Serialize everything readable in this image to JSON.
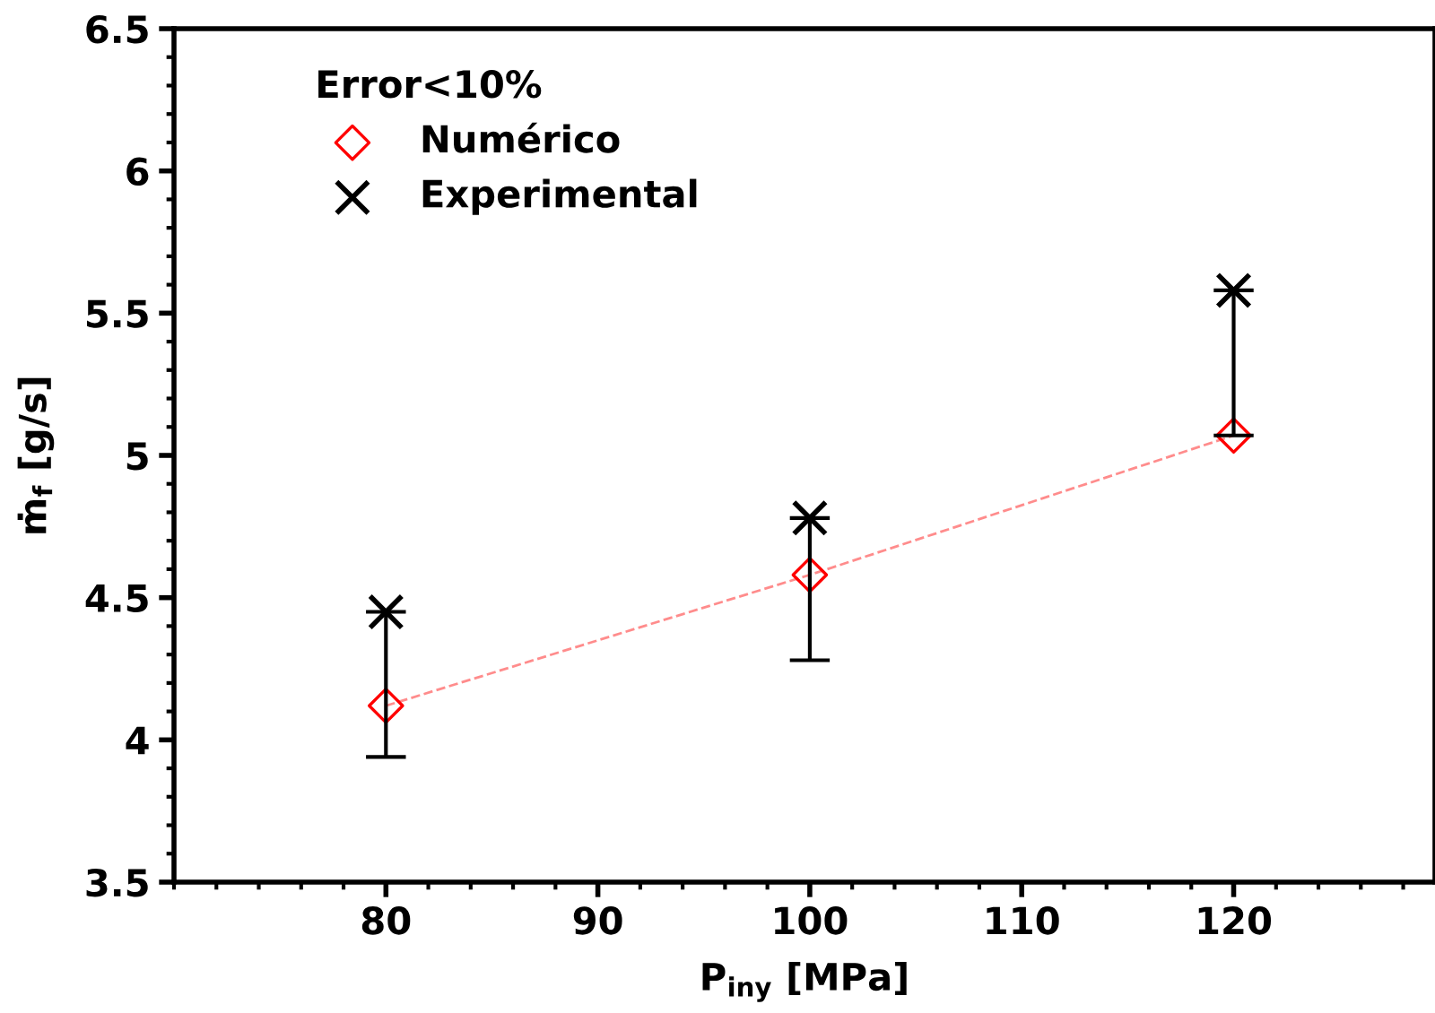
{
  "chart_data": {
    "type": "scatter",
    "xlabel": "P$_{iny}$ [MPa]",
    "ylabel": "ṁ$_{f}$ [g/s]",
    "legend_title": "Error<10%",
    "x": [
      80,
      100,
      120
    ],
    "series": [
      {
        "name": "Numérico",
        "color": "#ff0000",
        "type": "line",
        "marker": "diamond",
        "line_style": "dashed",
        "values": [
          4.12,
          4.58,
          5.07
        ]
      },
      {
        "name": "Experimental",
        "color": "#000000",
        "marker": "cross",
        "values": [
          4.45,
          4.78,
          5.58
        ],
        "errors": [
          [
            3.94,
            4.45
          ],
          [
            4.28,
            4.78
          ],
          [
            5.07,
            5.58
          ]
        ]
      }
    ],
    "xlim": [
      70,
      129.5
    ],
    "xticks": [
      80,
      90,
      100,
      110,
      120
    ],
    "ylim": [
      3.5,
      6.5
    ],
    "yticks": [
      3.5,
      4,
      4.5,
      5,
      5.5,
      6,
      6.5
    ],
    "grid": false,
    "legend": "top left"
  }
}
